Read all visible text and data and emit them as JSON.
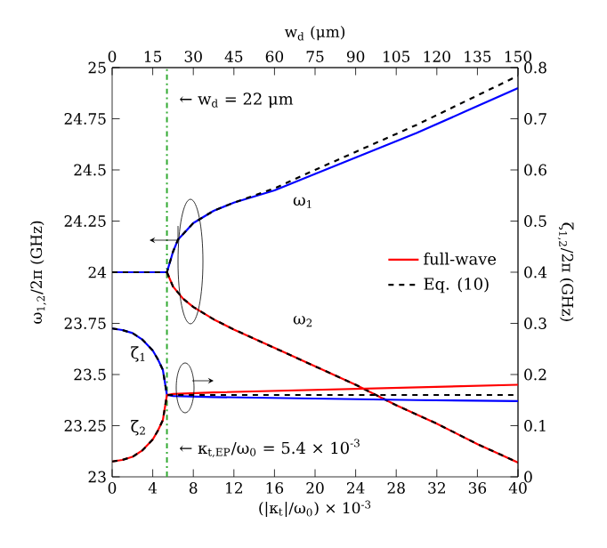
{
  "chart_data": {
    "type": "line",
    "xlabel": "(|κ$_{t}$|/ω$_{0}$) × 10$^{-3}$",
    "ylabel": "ω$_{1,2}$/2π (GHz)",
    "y2label": "ζ$_{1,2}$/2π (GHz)",
    "x2label": "w$_{d}$ (μm)",
    "xlim": [
      0,
      40
    ],
    "xticks": [
      0,
      4,
      8,
      12,
      16,
      20,
      24,
      28,
      32,
      36,
      40
    ],
    "ylim": [
      23,
      25
    ],
    "yticks": [
      23,
      23.25,
      23.5,
      23.75,
      24,
      24.25,
      24.5,
      24.75,
      25
    ],
    "y2lim": [
      0,
      0.8
    ],
    "y2ticks": [
      0,
      0.1,
      0.2,
      0.3,
      0.4,
      0.5,
      0.6,
      0.7,
      0.8
    ],
    "x2lim": [
      0,
      150
    ],
    "x2ticks": [
      0,
      15,
      30,
      45,
      60,
      75,
      90,
      105,
      120,
      135,
      150
    ],
    "marker": "none",
    "legend": "right",
    "grid": false,
    "series": [
      {
        "name": "full-wave",
        "color": "#ff0000",
        "line_style": "solid",
        "x": [
          0,
          5.4,
          6,
          7,
          8,
          10,
          12,
          16,
          20,
          24,
          28,
          32,
          36,
          40
        ],
        "values": [
          24,
          24,
          23.93,
          23.87,
          23.83,
          23.77,
          23.72,
          23.63,
          23.54,
          23.45,
          23.35,
          23.26,
          23.16,
          23.07
        ]
      },
      {
        "color": "#0000ff",
        "line_style": "solid",
        "x": [
          0,
          5.4,
          6,
          6.5,
          8,
          10,
          12,
          16,
          20,
          25,
          30,
          35,
          40
        ],
        "values": [
          24,
          24,
          24.1,
          24.16,
          24.24,
          24.3,
          24.34,
          24.4,
          24.48,
          24.58,
          24.68,
          24.79,
          24.9
        ]
      },
      {
        "color": "#0000ff",
        "line_style": "solid",
        "axis": "y2",
        "x": [
          0,
          1,
          2,
          3,
          4,
          4.5,
          5,
          5.4,
          6,
          10,
          20,
          30,
          40
        ],
        "values": [
          0.29,
          0.287,
          0.281,
          0.268,
          0.247,
          0.23,
          0.209,
          0.16,
          0.158,
          0.156,
          0.153,
          0.15,
          0.148
        ]
      },
      {
        "color": "#ff0000",
        "line_style": "solid",
        "axis": "y2",
        "x": [
          0,
          1,
          2,
          3,
          4,
          4.5,
          5,
          5.4,
          6,
          10,
          20,
          30,
          40
        ],
        "values": [
          0.03,
          0.033,
          0.039,
          0.052,
          0.073,
          0.09,
          0.111,
          0.16,
          0.162,
          0.165,
          0.17,
          0.175,
          0.18
        ]
      },
      {
        "name": "Eq. (10)",
        "color": "#000000",
        "line_style": "dashed",
        "x": [
          0,
          5.4,
          6,
          6.5,
          8,
          10,
          12,
          16,
          20,
          25,
          30,
          35,
          40
        ],
        "values": [
          24,
          24,
          24.1,
          24.16,
          24.24,
          24.3,
          24.34,
          24.41,
          24.5,
          24.61,
          24.72,
          24.84,
          24.96
        ]
      },
      {
        "color": "#000000",
        "line_style": "dashed",
        "x": [
          5.4,
          6,
          7,
          8,
          10,
          12,
          16,
          20,
          24,
          28,
          32,
          36,
          40
        ],
        "values": [
          24,
          23.93,
          23.87,
          23.83,
          23.77,
          23.72,
          23.63,
          23.54,
          23.45,
          23.35,
          23.26,
          23.16,
          23.07
        ]
      },
      {
        "color": "#000000",
        "line_style": "dashed",
        "axis": "y2",
        "x": [
          0,
          1,
          2,
          3,
          4,
          4.5,
          5,
          5.4,
          6,
          40
        ],
        "values": [
          0.29,
          0.287,
          0.281,
          0.268,
          0.247,
          0.23,
          0.209,
          0.16,
          0.16,
          0.16
        ]
      },
      {
        "color": "#000000",
        "line_style": "dashed",
        "axis": "y2",
        "x": [
          0,
          1,
          2,
          3,
          4,
          4.5,
          5,
          5.4
        ],
        "values": [
          0.03,
          0.033,
          0.039,
          0.052,
          0.073,
          0.09,
          0.111,
          0.16
        ]
      }
    ],
    "ref_lines": [
      {
        "axis": "x",
        "value": 5.4,
        "color": "#33aa33",
        "line_style": "dashdot"
      }
    ],
    "annotations": [
      "← w$_{d}$ = 22 μm",
      "← κ$_{t,EP}$/ω$_{0}$ = 5.4 × 10$^{-3}$",
      "ω$_{1}$",
      "ω$_{2}$",
      "ζ$_{1}$",
      "ζ$_{2}$"
    ]
  }
}
